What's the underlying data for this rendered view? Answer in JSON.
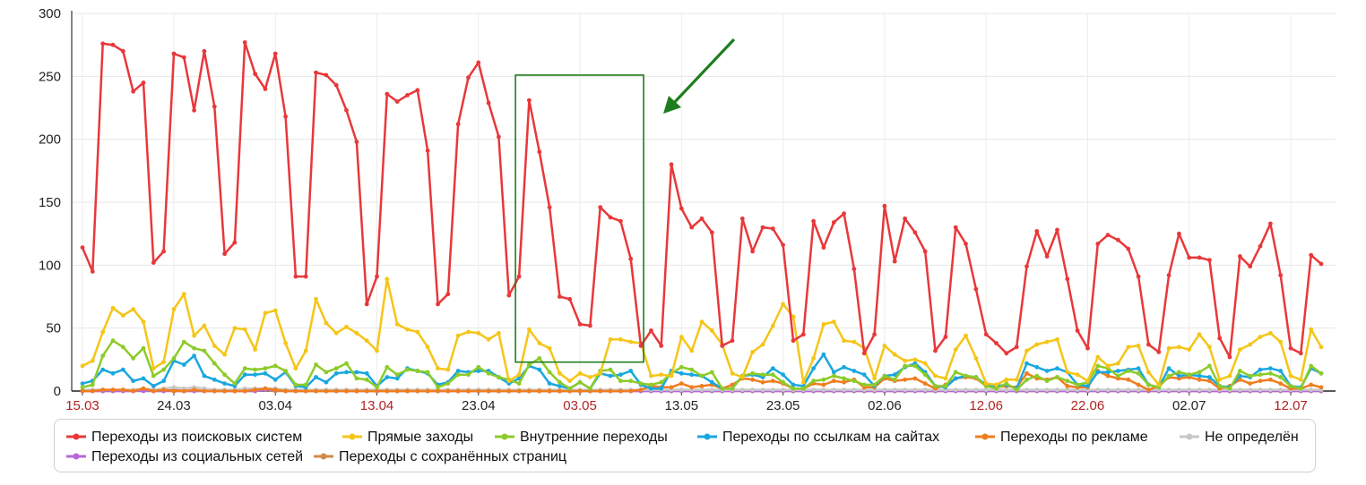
{
  "chart_data": {
    "type": "line",
    "title": "",
    "xlabel": "",
    "ylabel": "",
    "ylim": [
      0,
      300
    ],
    "y_ticks": [
      "0",
      "50",
      "100",
      "150",
      "200",
      "250",
      "300"
    ],
    "x_tick_labels": [
      {
        "label": "15.03",
        "day": 0,
        "color": "#b22222"
      },
      {
        "label": "24.03",
        "day": 9,
        "color": "#222222"
      },
      {
        "label": "03.04",
        "day": 19,
        "color": "#222222"
      },
      {
        "label": "13.04",
        "day": 29,
        "color": "#b22222"
      },
      {
        "label": "23.04",
        "day": 39,
        "color": "#222222"
      },
      {
        "label": "03.05",
        "day": 49,
        "color": "#b22222"
      },
      {
        "label": "13.05",
        "day": 59,
        "color": "#222222"
      },
      {
        "label": "23.05",
        "day": 69,
        "color": "#222222"
      },
      {
        "label": "02.06",
        "day": 79,
        "color": "#222222"
      },
      {
        "label": "12.06",
        "day": 89,
        "color": "#b22222"
      },
      {
        "label": "22.06",
        "day": 99,
        "color": "#b22222"
      },
      {
        "label": "02.07",
        "day": 109,
        "color": "#222222"
      },
      {
        "label": "12.07",
        "day": 119,
        "color": "#b22222"
      }
    ],
    "grid": true,
    "legend_position": "bottom",
    "series": [
      {
        "name": "Переходы из поисковых систем",
        "color": "#e8383a",
        "values": [
          114,
          95,
          276,
          275,
          270,
          238,
          245,
          102,
          111,
          268,
          265,
          223,
          270,
          226,
          109,
          118,
          277,
          252,
          240,
          268,
          218,
          91,
          91,
          253,
          251,
          243,
          223,
          198,
          69,
          91,
          236,
          230,
          235,
          239,
          191,
          69,
          77,
          212,
          249,
          261,
          229,
          202,
          76,
          91,
          231,
          190,
          146,
          75,
          73,
          53,
          52,
          146,
          138,
          135,
          105,
          36,
          48,
          36,
          180,
          145,
          130,
          137,
          126,
          36,
          40,
          137,
          111,
          130,
          129,
          116,
          40,
          45,
          135,
          114,
          134,
          141,
          97,
          30,
          45,
          147,
          103,
          137,
          126,
          111,
          32,
          43,
          130,
          117,
          81,
          45,
          38,
          30,
          35,
          99,
          127,
          107,
          128,
          89,
          48,
          34,
          117,
          124,
          120,
          113,
          91,
          37,
          31,
          92,
          125,
          106,
          106,
          104,
          42,
          27,
          107,
          99,
          115,
          133,
          92,
          34,
          30,
          108,
          101
        ]
      },
      {
        "name": "Прямые заходы",
        "color": "#f5c518",
        "values": [
          20,
          24,
          47,
          66,
          60,
          65,
          55,
          18,
          23,
          65,
          77,
          44,
          52,
          36,
          29,
          50,
          49,
          33,
          62,
          64,
          38,
          18,
          32,
          73,
          54,
          46,
          51,
          46,
          40,
          32,
          89,
          53,
          49,
          47,
          35,
          18,
          17,
          44,
          47,
          46,
          41,
          46,
          8,
          13,
          49,
          38,
          34,
          14,
          8,
          14,
          11,
          14,
          41,
          41,
          39,
          38,
          12,
          13,
          12,
          43,
          32,
          55,
          48,
          37,
          14,
          11,
          31,
          37,
          52,
          69,
          59,
          7,
          26,
          53,
          55,
          40,
          39,
          34,
          10,
          36,
          29,
          24,
          25,
          22,
          12,
          10,
          33,
          44,
          26,
          6,
          5,
          9,
          9,
          32,
          37,
          39,
          41,
          15,
          13,
          8,
          27,
          20,
          22,
          35,
          36,
          15,
          5,
          34,
          35,
          33,
          45,
          35,
          9,
          12,
          33,
          37,
          43,
          46,
          39,
          12,
          9,
          49,
          35
        ]
      },
      {
        "name": "Внутренние переходы",
        "color": "#8dcb2a",
        "values": [
          3,
          5,
          28,
          40,
          35,
          26,
          34,
          12,
          17,
          26,
          39,
          34,
          32,
          22,
          13,
          6,
          18,
          17,
          18,
          20,
          16,
          5,
          5,
          21,
          15,
          18,
          22,
          10,
          9,
          3,
          19,
          13,
          17,
          16,
          15,
          3,
          6,
          13,
          13,
          19,
          14,
          11,
          9,
          6,
          21,
          26,
          15,
          7,
          2,
          7,
          2,
          16,
          17,
          8,
          8,
          6,
          5,
          7,
          14,
          19,
          17,
          12,
          15,
          2,
          2,
          12,
          14,
          13,
          13,
          7,
          2,
          2,
          8,
          9,
          12,
          10,
          8,
          5,
          5,
          12,
          9,
          20,
          20,
          13,
          4,
          4,
          15,
          12,
          11,
          4,
          2,
          6,
          1,
          9,
          12,
          8,
          11,
          8,
          5,
          7,
          20,
          18,
          12,
          16,
          14,
          5,
          3,
          12,
          15,
          13,
          15,
          20,
          4,
          2,
          16,
          12,
          13,
          14,
          11,
          4,
          2,
          20,
          14
        ]
      },
      {
        "name": "Переходы по ссылкам на сайтах",
        "color": "#1aa7e0",
        "values": [
          6,
          8,
          17,
          14,
          17,
          8,
          10,
          4,
          8,
          24,
          21,
          28,
          12,
          9,
          6,
          4,
          13,
          13,
          14,
          9,
          15,
          4,
          3,
          11,
          7,
          14,
          15,
          15,
          14,
          4,
          11,
          10,
          18,
          16,
          14,
          5,
          7,
          16,
          15,
          16,
          16,
          11,
          6,
          10,
          20,
          17,
          6,
          4,
          2,
          7,
          2,
          14,
          12,
          13,
          16,
          5,
          2,
          2,
          16,
          14,
          13,
          12,
          7,
          2,
          2,
          12,
          13,
          11,
          18,
          13,
          5,
          4,
          18,
          29,
          15,
          19,
          16,
          13,
          4,
          12,
          13,
          19,
          22,
          15,
          4,
          3,
          10,
          12,
          11,
          5,
          4,
          5,
          2,
          22,
          19,
          16,
          18,
          15,
          5,
          4,
          15,
          15,
          16,
          17,
          18,
          5,
          3,
          18,
          12,
          13,
          12,
          11,
          4,
          3,
          12,
          11,
          17,
          18,
          16,
          4,
          3,
          18,
          14
        ]
      },
      {
        "name": "Переходы по рекламе",
        "color": "#f07d1e",
        "values": [
          0,
          0,
          1,
          1,
          1,
          0,
          2,
          0,
          1,
          0,
          0,
          1,
          0,
          0,
          0,
          0,
          0,
          1,
          2,
          1,
          0,
          0,
          0,
          0,
          0,
          0,
          0,
          0,
          0,
          0,
          0,
          0,
          0,
          0,
          0,
          0,
          0,
          0,
          0,
          0,
          0,
          0,
          0,
          0,
          0,
          0,
          0,
          0,
          0,
          0,
          0,
          0,
          0,
          0,
          0,
          1,
          4,
          3,
          3,
          6,
          3,
          4,
          5,
          2,
          5,
          10,
          9,
          7,
          8,
          6,
          2,
          2,
          6,
          5,
          8,
          7,
          9,
          3,
          3,
          10,
          8,
          9,
          10,
          6,
          2,
          5,
          10,
          11,
          10,
          4,
          3,
          4,
          3,
          14,
          10,
          9,
          11,
          4,
          3,
          3,
          16,
          12,
          10,
          9,
          5,
          1,
          4,
          11,
          10,
          11,
          9,
          8,
          2,
          4,
          9,
          6,
          8,
          9,
          6,
          2,
          2,
          5,
          3
        ]
      },
      {
        "name": "Не определён",
        "color": "#c7c7c7",
        "values": [
          1,
          1,
          1,
          1,
          1,
          1,
          2,
          1,
          2,
          3,
          2,
          3,
          2,
          1,
          1,
          1,
          2,
          2,
          2,
          2,
          1,
          1,
          1,
          1,
          1,
          1,
          1,
          1,
          1,
          1,
          1,
          1,
          1,
          1,
          1,
          1,
          1,
          1,
          1,
          1,
          1,
          1,
          1,
          1,
          1,
          1,
          1,
          1,
          1,
          1,
          1,
          1,
          1,
          1,
          1,
          1,
          1,
          1,
          1,
          1,
          1,
          1,
          1,
          1,
          1,
          1,
          1,
          1,
          1,
          1,
          1,
          1,
          1,
          1,
          1,
          1,
          1,
          1,
          1,
          1,
          1,
          1,
          1,
          1,
          1,
          1,
          1,
          1,
          1,
          1,
          1,
          1,
          1,
          1,
          1,
          1,
          1,
          1,
          1,
          1,
          1,
          1,
          1,
          1,
          1,
          1,
          1,
          1,
          1,
          1,
          1,
          1,
          1,
          1,
          1,
          1,
          1,
          1,
          1,
          1,
          1,
          1,
          1
        ]
      },
      {
        "name": "Переходы из социальных сетей",
        "color": "#b569d8",
        "values": [
          0,
          0,
          0,
          0,
          0,
          0,
          0,
          0,
          0,
          0,
          0,
          0,
          0,
          0,
          0,
          0,
          0,
          0,
          1,
          1,
          0,
          0,
          0,
          0,
          0,
          0,
          0,
          0,
          0,
          0,
          0,
          0,
          0,
          0,
          0,
          0,
          0,
          0,
          0,
          0,
          0,
          0,
          0,
          0,
          0,
          0,
          0,
          0,
          0,
          0,
          0,
          0,
          0,
          0,
          0,
          0,
          0,
          0,
          0,
          0,
          0,
          0,
          0,
          0,
          0,
          0,
          0,
          0,
          0,
          0,
          0,
          0,
          0,
          0,
          0,
          0,
          0,
          0,
          0,
          0,
          0,
          0,
          0,
          0,
          0,
          0,
          0,
          0,
          0,
          0,
          0,
          0,
          0,
          0,
          0,
          0,
          0,
          0,
          0,
          0,
          0,
          0,
          0,
          0,
          0,
          0,
          0,
          0,
          0,
          0,
          0,
          0,
          0,
          0,
          0,
          0,
          0,
          0,
          0,
          0,
          0,
          0,
          0
        ]
      },
      {
        "name": "Переходы с сохранённых страниц",
        "color": "#d08a4a",
        "values": [
          0,
          0,
          0,
          0,
          0,
          0,
          1,
          0,
          0,
          1,
          0,
          0,
          0,
          0,
          0,
          0,
          0,
          0,
          1,
          0,
          0,
          0,
          0,
          0,
          0,
          0,
          0,
          0,
          0,
          0,
          0,
          0,
          0,
          0,
          0,
          0,
          0,
          0,
          0,
          0,
          0,
          0,
          0,
          0,
          0,
          0,
          0,
          0,
          0,
          0,
          0,
          0,
          0,
          0,
          0,
          0,
          0,
          0,
          0,
          0,
          0,
          0,
          0,
          0,
          0,
          0,
          0,
          0,
          0,
          0,
          0,
          0,
          0,
          0,
          0,
          0,
          0,
          0,
          0,
          0,
          0,
          0,
          0,
          0,
          0,
          0,
          0,
          0,
          0,
          0,
          0,
          0,
          0,
          0,
          0,
          0,
          0,
          0,
          0,
          0,
          0,
          0,
          0,
          0,
          0,
          0,
          0,
          0,
          0,
          0,
          0,
          0,
          0,
          0,
          0,
          0,
          0,
          0,
          0,
          0,
          0,
          0,
          0
        ]
      }
    ]
  },
  "annotations": {
    "highlight_box_color": "#1e7d1e",
    "highlight_range": {
      "from_day": 43,
      "to_day": 55,
      "y_from": 23,
      "y_to": 251
    },
    "arrow_color": "#1e7d1e"
  }
}
